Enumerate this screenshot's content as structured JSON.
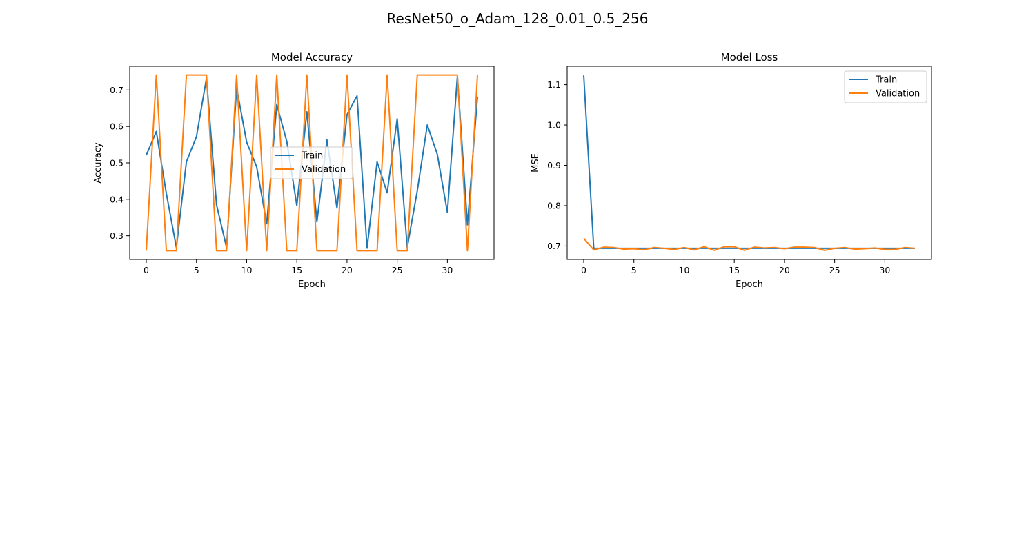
{
  "figure": {
    "title": "ResNet50_o_Adam_128_0.01_0.5_256"
  },
  "colors": {
    "train": "#1f77b4",
    "validation": "#ff7f0e",
    "axis": "#000000",
    "legend_border": "#cccccc"
  },
  "chart_data": [
    {
      "type": "line",
      "title": "Model Accuracy",
      "xlabel": "Epoch",
      "ylabel": "Accuracy",
      "xlim": [
        -1.65,
        34.65
      ],
      "ylim": [
        0.235,
        0.765
      ],
      "xticks": [
        0,
        5,
        10,
        15,
        20,
        25,
        30
      ],
      "yticks": [
        0.3,
        0.4,
        0.5,
        0.6,
        0.7
      ],
      "ytick_labels": [
        "0.3",
        "0.4",
        "0.5",
        "0.6",
        "0.7"
      ],
      "grid": false,
      "legend_position": "center",
      "x": [
        0,
        1,
        2,
        3,
        4,
        5,
        6,
        7,
        8,
        9,
        10,
        11,
        12,
        13,
        14,
        15,
        16,
        17,
        18,
        19,
        20,
        21,
        22,
        23,
        24,
        25,
        26,
        27,
        28,
        29,
        30,
        31,
        32,
        33
      ],
      "series": [
        {
          "name": "Train",
          "color": "#1f77b4",
          "values": [
            0.521,
            0.586,
            0.416,
            0.268,
            0.503,
            0.572,
            0.732,
            0.385,
            0.268,
            0.706,
            0.557,
            0.489,
            0.333,
            0.66,
            0.559,
            0.383,
            0.64,
            0.338,
            0.563,
            0.376,
            0.632,
            0.684,
            0.266,
            0.503,
            0.418,
            0.621,
            0.268,
            0.423,
            0.604,
            0.523,
            0.364,
            0.738,
            0.33,
            0.682
          ]
        },
        {
          "name": "Validation",
          "color": "#ff7f0e",
          "values": [
            0.259,
            0.741,
            0.259,
            0.259,
            0.741,
            0.741,
            0.741,
            0.259,
            0.259,
            0.741,
            0.259,
            0.741,
            0.259,
            0.741,
            0.259,
            0.259,
            0.741,
            0.259,
            0.259,
            0.259,
            0.741,
            0.259,
            0.259,
            0.259,
            0.741,
            0.259,
            0.259,
            0.741,
            0.741,
            0.741,
            0.741,
            0.741,
            0.259,
            0.741
          ]
        }
      ]
    },
    {
      "type": "line",
      "title": "Model Loss",
      "xlabel": "Epoch",
      "ylabel": "MSE",
      "xlim": [
        -1.65,
        34.65
      ],
      "ylim": [
        0.6665,
        1.1455
      ],
      "xticks": [
        0,
        5,
        10,
        15,
        20,
        25,
        30
      ],
      "yticks": [
        0.7,
        0.8,
        0.9,
        1.0,
        1.1
      ],
      "ytick_labels": [
        "0.7",
        "0.8",
        "0.9",
        "1.0",
        "1.1"
      ],
      "grid": false,
      "legend_position": "upper right",
      "x": [
        0,
        1,
        2,
        3,
        4,
        5,
        6,
        7,
        8,
        9,
        10,
        11,
        12,
        13,
        14,
        15,
        16,
        17,
        18,
        19,
        20,
        21,
        22,
        23,
        24,
        25,
        26,
        27,
        28,
        29,
        30,
        31,
        32,
        33
      ],
      "series": [
        {
          "name": "Train",
          "color": "#1f77b4",
          "values": [
            1.123,
            0.694,
            0.694,
            0.694,
            0.694,
            0.694,
            0.694,
            0.694,
            0.694,
            0.694,
            0.694,
            0.694,
            0.694,
            0.694,
            0.694,
            0.694,
            0.694,
            0.694,
            0.694,
            0.694,
            0.694,
            0.694,
            0.694,
            0.694,
            0.694,
            0.694,
            0.694,
            0.694,
            0.694,
            0.694,
            0.694,
            0.694,
            0.694,
            0.694
          ]
        },
        {
          "name": "Validation",
          "color": "#ff7f0e",
          "values": [
            0.719,
            0.69,
            0.697,
            0.696,
            0.692,
            0.693,
            0.69,
            0.696,
            0.694,
            0.691,
            0.696,
            0.69,
            0.698,
            0.689,
            0.698,
            0.698,
            0.689,
            0.697,
            0.695,
            0.696,
            0.693,
            0.697,
            0.697,
            0.696,
            0.689,
            0.694,
            0.696,
            0.692,
            0.693,
            0.695,
            0.691,
            0.691,
            0.696,
            0.694
          ]
        }
      ]
    }
  ]
}
